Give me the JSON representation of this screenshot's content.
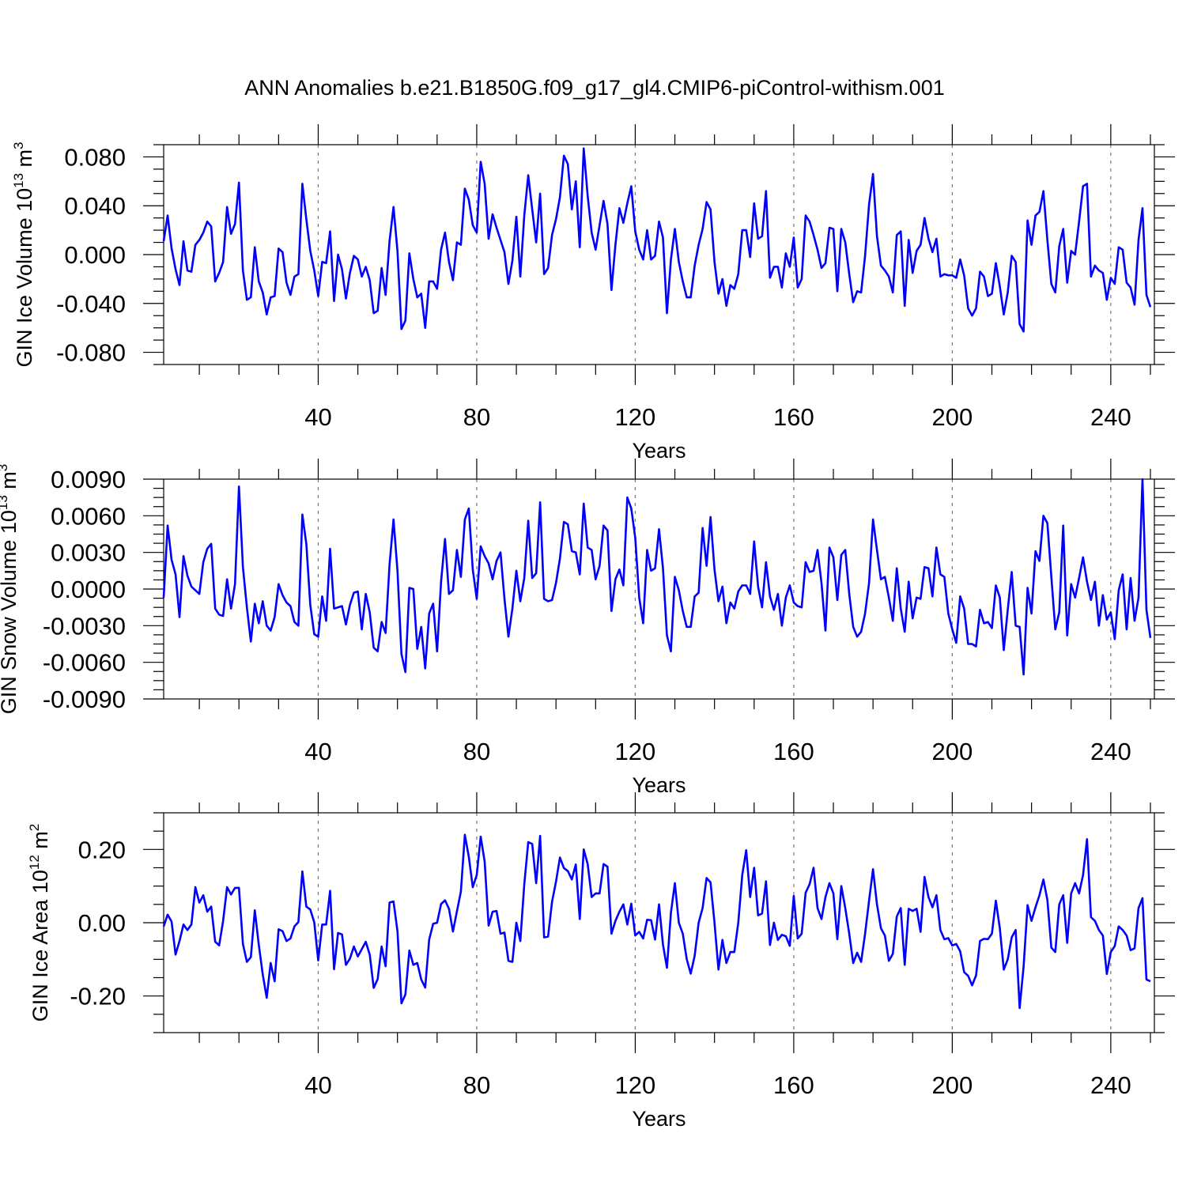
{
  "title": "ANN Anomalies b.e21.B1850G.f09_g17_gl4.CMIP6-piControl-withism.001",
  "line_color": "#0000ff",
  "chart_data": [
    {
      "type": "line",
      "ylabel_main": "GIN Ice Volume 10",
      "ylabel_exp": "13",
      "ylabel_tail": " m",
      "ylabel_unit_exp": "3",
      "xlabel": "Years",
      "xlim": [
        1,
        251
      ],
      "ylim": [
        -0.09,
        0.09
      ],
      "xticks": [
        40,
        80,
        120,
        160,
        200,
        240
      ],
      "xtick_labels": [
        "40",
        "80",
        "120",
        "160",
        "200",
        "240"
      ],
      "yticks": [
        -0.08,
        -0.04,
        0.0,
        0.04,
        0.08
      ],
      "ytick_labels": [
        "-0.080",
        "-0.040",
        "0.000",
        "0.040",
        "0.080"
      ],
      "x_start": 1,
      "values": [
        0.011,
        0.032,
        0.005,
        -0.012,
        -0.025,
        0.011,
        -0.013,
        -0.014,
        0.008,
        0.012,
        0.018,
        0.027,
        0.023,
        -0.022,
        -0.015,
        -0.006,
        0.039,
        0.017,
        0.025,
        0.059,
        -0.013,
        -0.037,
        -0.035,
        0.006,
        -0.022,
        -0.031,
        -0.049,
        -0.035,
        -0.034,
        0.005,
        0.002,
        -0.023,
        -0.033,
        -0.018,
        -0.016,
        0.058,
        0.029,
        0.003,
        -0.013,
        -0.034,
        -0.006,
        -0.007,
        0.019,
        -0.038,
        0.0,
        -0.012,
        -0.036,
        -0.015,
        -0.001,
        -0.004,
        -0.018,
        -0.01,
        -0.021,
        -0.048,
        -0.046,
        -0.011,
        -0.033,
        0.011,
        0.039,
        0.003,
        -0.061,
        -0.054,
        0.001,
        -0.02,
        -0.035,
        -0.032,
        -0.06,
        -0.022,
        -0.022,
        -0.028,
        0.004,
        0.018,
        -0.006,
        -0.021,
        0.01,
        0.008,
        0.054,
        0.045,
        0.024,
        0.018,
        0.076,
        0.058,
        0.013,
        0.033,
        0.022,
        0.012,
        0.002,
        -0.024,
        -0.005,
        0.031,
        -0.018,
        0.032,
        0.065,
        0.037,
        0.01,
        0.05,
        -0.016,
        -0.011,
        0.016,
        0.029,
        0.047,
        0.081,
        0.074,
        0.037,
        0.06,
        0.006,
        0.087,
        0.048,
        0.018,
        0.004,
        0.024,
        0.044,
        0.025,
        -0.029,
        0.008,
        0.038,
        0.026,
        0.042,
        0.056,
        0.019,
        0.004,
        -0.004,
        0.02,
        -0.004,
        -0.001,
        0.027,
        0.014,
        -0.048,
        -0.004,
        0.021,
        -0.006,
        -0.022,
        -0.035,
        -0.035,
        -0.009,
        0.008,
        0.021,
        0.043,
        0.037,
        -0.006,
        -0.032,
        -0.02,
        -0.042,
        -0.025,
        -0.028,
        -0.016,
        0.02,
        0.02,
        -0.002,
        0.042,
        0.013,
        0.015,
        0.052,
        -0.019,
        -0.01,
        -0.01,
        -0.027,
        0.001,
        -0.01,
        0.014,
        -0.027,
        -0.02,
        0.032,
        0.027,
        0.016,
        0.004,
        -0.011,
        -0.007,
        0.022,
        0.021,
        -0.03,
        0.021,
        0.01,
        -0.016,
        -0.039,
        -0.03,
        -0.031,
        -0.001,
        0.041,
        0.066,
        0.015,
        -0.009,
        -0.013,
        -0.018,
        -0.031,
        0.016,
        0.019,
        -0.042,
        0.012,
        -0.015,
        0.003,
        0.008,
        0.03,
        0.013,
        0.002,
        0.013,
        -0.018,
        -0.016,
        -0.017,
        -0.017,
        -0.019,
        -0.004,
        -0.017,
        -0.044,
        -0.05,
        -0.044,
        -0.014,
        -0.018,
        -0.034,
        -0.032,
        -0.007,
        -0.026,
        -0.049,
        -0.031,
        -0.001,
        -0.006,
        -0.057,
        -0.063,
        0.028,
        0.008,
        0.032,
        0.035,
        0.052,
        0.012,
        -0.024,
        -0.031,
        0.007,
        0.021,
        -0.023,
        0.003,
        0.0,
        0.027,
        0.056,
        0.058,
        -0.018,
        -0.009,
        -0.013,
        -0.015,
        -0.037,
        -0.019,
        -0.024,
        0.006,
        0.004,
        -0.023,
        -0.027,
        -0.041,
        0.012,
        0.038,
        -0.033,
        -0.043
      ]
    },
    {
      "type": "line",
      "ylabel_main": "GIN Snow Volume 10",
      "ylabel_exp": "13",
      "ylabel_tail": " m",
      "ylabel_unit_exp": "3",
      "xlabel": "Years",
      "xlim": [
        1,
        251
      ],
      "ylim": [
        -0.009,
        0.009
      ],
      "xticks": [
        40,
        80,
        120,
        160,
        200,
        240
      ],
      "xtick_labels": [
        "40",
        "80",
        "120",
        "160",
        "200",
        "240"
      ],
      "yticks": [
        -0.009,
        -0.006,
        -0.003,
        0.0,
        0.003,
        0.006,
        0.009
      ],
      "ytick_labels": [
        "-0.0090",
        "-0.0060",
        "-0.0030",
        "0.0000",
        "0.0030",
        "0.0060",
        "0.0090"
      ],
      "x_start": 1,
      "values": [
        -0.0007,
        0.0052,
        0.0024,
        0.0012,
        -0.0023,
        0.0027,
        0.0011,
        0.0002,
        -0.0001,
        -0.0004,
        0.0022,
        0.0033,
        0.0037,
        -0.0016,
        -0.0021,
        -0.0022,
        0.0008,
        -0.0016,
        0.0004,
        0.0084,
        0.0018,
        -0.0015,
        -0.0043,
        -0.0012,
        -0.0028,
        -0.001,
        -0.003,
        -0.0034,
        -0.0023,
        0.0004,
        -0.0005,
        -0.0011,
        -0.0014,
        -0.0027,
        -0.003,
        0.0061,
        0.0037,
        -0.0013,
        -0.0037,
        -0.0039,
        -0.0006,
        -0.0026,
        0.0033,
        -0.0016,
        -0.0015,
        -0.0014,
        -0.0029,
        -0.0013,
        -0.0003,
        -0.0002,
        -0.0033,
        -0.0004,
        -0.0019,
        -0.0048,
        -0.0051,
        -0.0027,
        -0.0036,
        0.002,
        0.0057,
        0.0015,
        -0.0053,
        -0.0068,
        0.0001,
        0.0,
        -0.0049,
        -0.0031,
        -0.0065,
        -0.002,
        -0.0012,
        -0.0051,
        0.0006,
        0.0041,
        -0.0004,
        -0.0001,
        0.0032,
        0.001,
        0.0057,
        0.0066,
        0.0016,
        -0.0008,
        0.0035,
        0.0027,
        0.0021,
        0.0008,
        0.0023,
        0.003,
        -0.0008,
        -0.0039,
        -0.0016,
        0.0015,
        -0.001,
        0.0009,
        0.0056,
        0.0009,
        0.0013,
        0.0071,
        -0.0008,
        -0.001,
        -0.0009,
        0.0005,
        0.0025,
        0.0055,
        0.0053,
        0.0031,
        0.003,
        0.0012,
        0.007,
        0.0034,
        0.0032,
        0.0008,
        0.0019,
        0.0052,
        0.0048,
        -0.0018,
        0.0008,
        0.0016,
        0.0003,
        0.0075,
        0.0066,
        0.0042,
        -0.0007,
        -0.0028,
        0.0032,
        0.0015,
        0.0017,
        0.0049,
        0.0017,
        -0.0038,
        -0.0051,
        0.001,
        -0.0001,
        -0.0018,
        -0.0031,
        -0.0031,
        -0.0006,
        -0.0003,
        0.005,
        0.0019,
        0.0059,
        0.0016,
        -0.001,
        0.0002,
        -0.0028,
        -0.0011,
        -0.0016,
        -0.0002,
        0.0003,
        0.0003,
        -0.0004,
        0.0039,
        0.0002,
        -0.0015,
        0.0022,
        -0.0006,
        -0.0017,
        -0.0004,
        -0.003,
        -0.0007,
        0.0003,
        -0.0011,
        -0.0014,
        -0.0015,
        0.0022,
        0.0014,
        0.0015,
        0.0032,
        0.0005,
        -0.0034,
        0.0034,
        0.0026,
        -0.0009,
        0.0028,
        0.0032,
        -0.0004,
        -0.0031,
        -0.0039,
        -0.0035,
        -0.002,
        0.0005,
        0.0057,
        0.0032,
        0.0008,
        0.001,
        -0.0007,
        -0.0026,
        0.0017,
        -0.0016,
        -0.0035,
        0.0006,
        -0.0024,
        -0.0007,
        -0.0008,
        0.0018,
        0.0017,
        -0.0006,
        0.0034,
        0.0012,
        0.001,
        -0.002,
        -0.0033,
        -0.0044,
        -0.0006,
        -0.0016,
        -0.0045,
        -0.0045,
        -0.0047,
        -0.0017,
        -0.0028,
        -0.0027,
        -0.0032,
        0.0003,
        -0.0007,
        -0.005,
        -0.0017,
        0.0014,
        -0.003,
        -0.0031,
        -0.007,
        0.0001,
        -0.002,
        0.0031,
        0.0023,
        0.006,
        0.0054,
        0.001,
        -0.0033,
        -0.0019,
        0.0052,
        -0.0038,
        0.0004,
        -0.0007,
        0.0009,
        0.0026,
        0.0006,
        -0.0009,
        0.0006,
        -0.003,
        -0.0005,
        -0.0025,
        -0.0019,
        -0.0041,
        -0.0001,
        0.0012,
        -0.0033,
        0.0009,
        -0.0026,
        -0.0007,
        0.009,
        -0.0017,
        -0.004
      ]
    },
    {
      "type": "line",
      "ylabel_main": "GIN Ice Area 10",
      "ylabel_exp": "12",
      "ylabel_tail": " m",
      "ylabel_unit_exp": "2",
      "xlabel": "Years",
      "xlim": [
        1,
        251
      ],
      "ylim": [
        -0.3,
        0.3
      ],
      "xticks": [
        40,
        80,
        120,
        160,
        200,
        240
      ],
      "xtick_labels": [
        "40",
        "80",
        "120",
        "160",
        "200",
        "240"
      ],
      "yticks": [
        -0.2,
        0.0,
        0.2
      ],
      "ytick_labels": [
        "-0.20",
        "0.00",
        "0.20"
      ],
      "x_start": 1,
      "values": [
        -0.01,
        0.022,
        0.003,
        -0.087,
        -0.05,
        -0.005,
        -0.02,
        -0.005,
        0.097,
        0.055,
        0.075,
        0.03,
        0.044,
        -0.052,
        -0.062,
        0.005,
        0.097,
        0.077,
        0.095,
        0.095,
        -0.058,
        -0.107,
        -0.094,
        0.034,
        -0.06,
        -0.141,
        -0.205,
        -0.11,
        -0.16,
        -0.018,
        -0.023,
        -0.05,
        -0.043,
        -0.01,
        0.002,
        0.14,
        0.044,
        0.036,
        0.001,
        -0.103,
        -0.005,
        -0.005,
        0.087,
        -0.127,
        -0.028,
        -0.032,
        -0.115,
        -0.098,
        -0.065,
        -0.092,
        -0.072,
        -0.052,
        -0.087,
        -0.178,
        -0.154,
        -0.065,
        -0.119,
        0.055,
        0.058,
        -0.023,
        -0.22,
        -0.196,
        -0.076,
        -0.115,
        -0.11,
        -0.155,
        -0.177,
        -0.046,
        -0.003,
        0.0,
        0.051,
        0.061,
        0.038,
        -0.024,
        0.031,
        0.085,
        0.24,
        0.18,
        0.097,
        0.13,
        0.235,
        0.167,
        -0.008,
        0.03,
        0.032,
        -0.03,
        -0.027,
        -0.104,
        -0.107,
        0.0,
        -0.05,
        0.105,
        0.22,
        0.215,
        0.108,
        0.237,
        -0.04,
        -0.038,
        0.057,
        0.112,
        0.178,
        0.149,
        0.141,
        0.118,
        0.159,
        0.01,
        0.2,
        0.16,
        0.07,
        0.08,
        0.08,
        0.16,
        0.153,
        -0.03,
        0.005,
        0.03,
        0.05,
        -0.005,
        0.052,
        -0.035,
        -0.025,
        -0.043,
        0.008,
        0.007,
        -0.046,
        0.05,
        -0.06,
        -0.123,
        0.027,
        0.108,
        0.0,
        -0.03,
        -0.1,
        -0.139,
        -0.09,
        0.0,
        0.04,
        0.122,
        0.11,
        0.0,
        -0.128,
        -0.047,
        -0.11,
        -0.08,
        -0.08,
        0.0,
        0.13,
        0.198,
        0.07,
        0.15,
        0.02,
        0.025,
        0.113,
        -0.061,
        0.0,
        -0.047,
        -0.033,
        -0.037,
        -0.063,
        0.073,
        -0.043,
        -0.03,
        0.082,
        0.105,
        0.15,
        0.04,
        0.01,
        0.07,
        0.108,
        0.08,
        -0.045,
        0.1,
        0.04,
        -0.03,
        -0.11,
        -0.082,
        -0.107,
        -0.03,
        0.06,
        0.146,
        0.05,
        -0.015,
        -0.035,
        -0.104,
        -0.085,
        0.017,
        0.04,
        -0.115,
        0.038,
        0.032,
        0.038,
        -0.025,
        0.125,
        0.07,
        0.042,
        0.075,
        -0.02,
        -0.045,
        -0.042,
        -0.062,
        -0.058,
        -0.078,
        -0.135,
        -0.145,
        -0.171,
        -0.144,
        -0.05,
        -0.044,
        -0.045,
        -0.03,
        0.06,
        -0.015,
        -0.128,
        -0.1,
        -0.04,
        -0.02,
        -0.233,
        -0.12,
        0.048,
        0.005,
        0.042,
        0.075,
        0.118,
        0.062,
        -0.068,
        -0.08,
        0.05,
        0.075,
        -0.055,
        0.08,
        0.108,
        0.08,
        0.13,
        0.228,
        0.015,
        0.005,
        -0.02,
        -0.035,
        -0.14,
        -0.08,
        -0.064,
        -0.01,
        -0.02,
        -0.035,
        -0.075,
        -0.07,
        0.04,
        0.067,
        -0.155,
        -0.16
      ]
    }
  ]
}
